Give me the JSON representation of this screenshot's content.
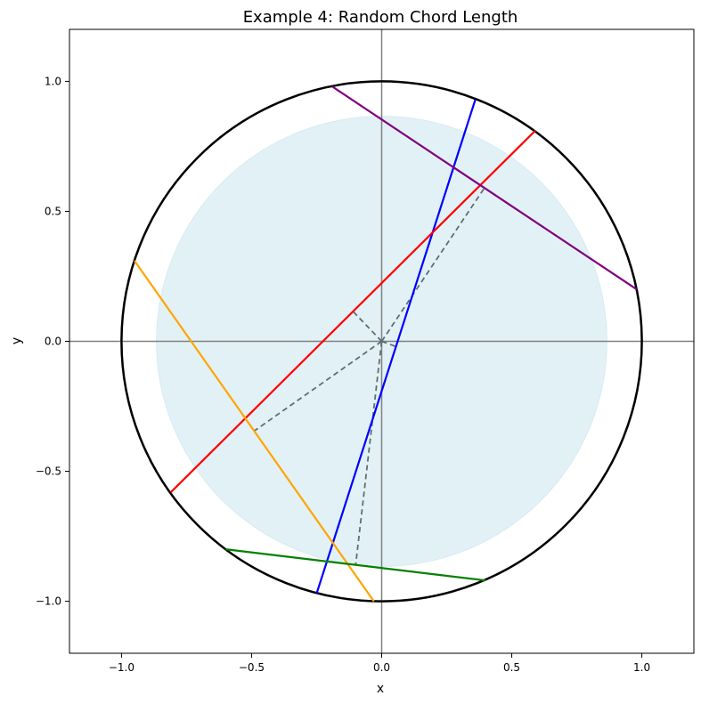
{
  "chart_data": {
    "type": "line",
    "title": "Example 4: Random Chord Length",
    "xlabel": "x",
    "ylabel": "y",
    "xlim": [
      -1.2,
      1.2
    ],
    "ylim": [
      -1.2,
      1.2
    ],
    "xticks": [
      -1.0,
      -0.5,
      0.0,
      0.5,
      1.0
    ],
    "yticks": [
      -1.0,
      -0.5,
      0.0,
      0.5,
      1.0
    ],
    "xtick_labels": [
      "−1.0",
      "−0.5",
      "0.0",
      "0.5",
      "1.0"
    ],
    "ytick_labels": [
      "−1.0",
      "−0.5",
      "0.0",
      "0.5",
      "1.0"
    ],
    "grid": false,
    "unit_circle": {
      "center": [
        0,
        0
      ],
      "radius": 1.0,
      "color": "#000000"
    },
    "shaded_disk": {
      "center": [
        0,
        0
      ],
      "radius": 0.866,
      "color": "#add8e6"
    },
    "axes_lines": {
      "color": "#808080"
    },
    "chords": [
      {
        "color": "#0000ff",
        "start": [
          -0.25,
          -0.97
        ],
        "end": [
          0.36,
          0.93
        ],
        "midpoint": [
          0.055,
          -0.02
        ]
      },
      {
        "color": "#ff0000",
        "start": [
          -0.81,
          -0.58
        ],
        "end": [
          0.59,
          0.81
        ],
        "midpoint": [
          -0.11,
          0.115
        ]
      },
      {
        "color": "#800080",
        "start": [
          -0.19,
          0.98
        ],
        "end": [
          0.98,
          0.2
        ],
        "midpoint": [
          0.395,
          0.59
        ]
      },
      {
        "color": "#ffa500",
        "start": [
          -0.95,
          0.31
        ],
        "end": [
          -0.03,
          -1.0
        ],
        "midpoint": [
          -0.49,
          -0.345
        ]
      },
      {
        "color": "#008000",
        "start": [
          -0.6,
          -0.8
        ],
        "end": [
          0.4,
          -0.92
        ],
        "midpoint": [
          -0.1,
          -0.86
        ]
      }
    ],
    "radius_line_color": "#5f6f6f"
  }
}
